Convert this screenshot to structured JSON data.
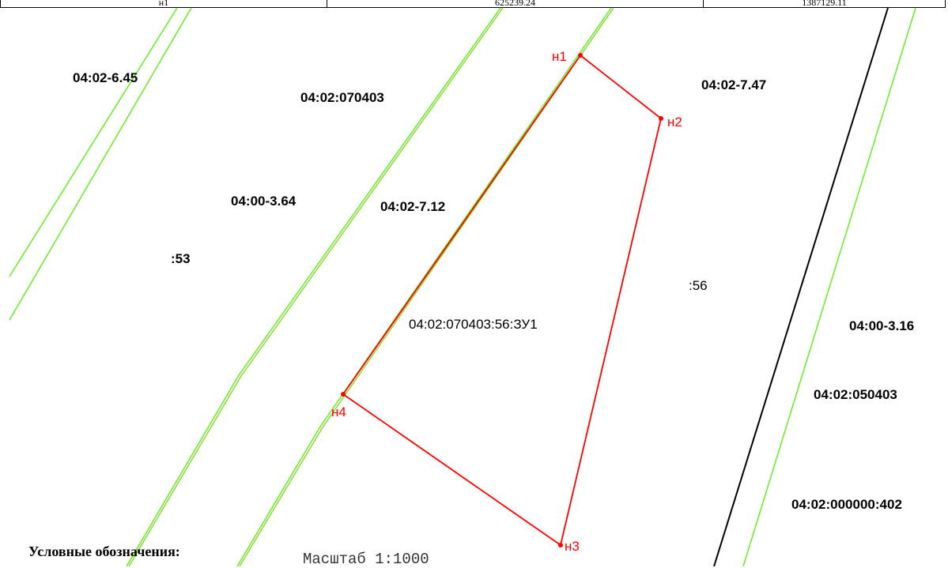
{
  "header_row": {
    "col1": "н1",
    "col2": "625239.24",
    "col3": "1387129.11"
  },
  "labels": {
    "zone_6_45": "04:02-6.45",
    "quarter_070403": "04:02:070403",
    "zone_7_47": "04:02-7.47",
    "zone_3_64": "04:00-3.64",
    "zone_7_12": "04:02-7.12",
    "parcel_53": ":53",
    "parcel_56": ":56",
    "new_parcel": "04:02:070403:56:ЗУ1",
    "zone_3_16": "04:00-3.16",
    "quarter_050403": "04:02:050403",
    "parcel_402": "04:02:000000:402"
  },
  "points": {
    "n1": "н1",
    "n2": "н2",
    "n3": "н3",
    "n4": "н4"
  },
  "legend_title": "Условные обозначения:",
  "scale_text": "Масштаб 1:1000",
  "colors": {
    "zone_line": "#66ee22",
    "new_boundary": "#ff0000",
    "quarter_boundary": "#000000"
  }
}
